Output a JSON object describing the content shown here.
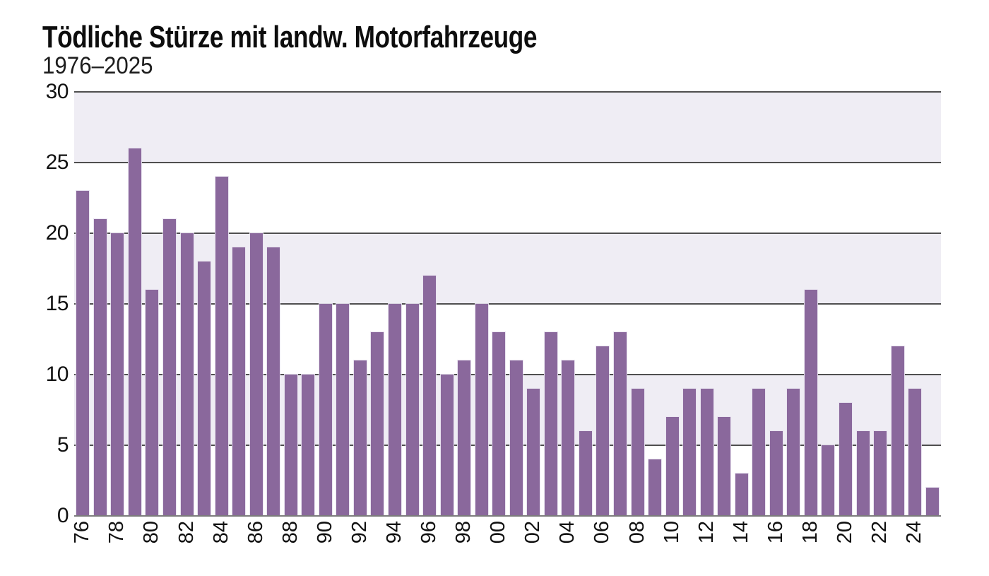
{
  "chart_data": {
    "type": "bar",
    "title": "Tödliche Stürze mit landw. Motorfahrzeuge",
    "subtitle": "1976–2025",
    "xlabel": "",
    "ylabel": "",
    "ylim": [
      0,
      30
    ],
    "yticks": [
      30,
      25,
      20,
      15,
      10,
      5,
      0
    ],
    "ytick_labels": [
      "30",
      "25",
      "20",
      "15",
      "10",
      "5",
      "0"
    ],
    "shaded_bands": [
      [
        25,
        30
      ],
      [
        15,
        20
      ],
      [
        5,
        10
      ]
    ],
    "grid": "horizontal-every-5",
    "legend": "none",
    "xtick_step": 2,
    "xtick_labels": [
      "76",
      "78",
      "80",
      "82",
      "84",
      "86",
      "88",
      "90",
      "92",
      "94",
      "96",
      "98",
      "00",
      "02",
      "04",
      "06",
      "08",
      "10",
      "12",
      "14",
      "16",
      "18",
      "20",
      "22",
      "24"
    ],
    "years": [
      1976,
      1977,
      1978,
      1979,
      1980,
      1981,
      1982,
      1983,
      1984,
      1985,
      1986,
      1987,
      1988,
      1989,
      1990,
      1991,
      1992,
      1993,
      1994,
      1995,
      1996,
      1997,
      1998,
      1999,
      2000,
      2001,
      2002,
      2003,
      2004,
      2005,
      2006,
      2007,
      2008,
      2009,
      2010,
      2011,
      2012,
      2013,
      2014,
      2015,
      2016,
      2017,
      2018,
      2019,
      2020,
      2021,
      2022,
      2023,
      2024,
      2025
    ],
    "values": [
      23,
      21,
      20,
      26,
      16,
      21,
      20,
      18,
      24,
      19,
      20,
      19,
      10,
      10,
      15,
      15,
      11,
      13,
      15,
      15,
      17,
      10,
      11,
      15,
      13,
      11,
      9,
      13,
      11,
      6,
      12,
      13,
      9,
      4,
      7,
      9,
      9,
      7,
      3,
      9,
      6,
      9,
      16,
      5,
      8,
      6,
      6,
      12,
      9,
      2
    ],
    "colors": {
      "bar": "#8a689c",
      "band": "#efedf4",
      "grid": "#4f4f4f",
      "baseline": "#7c7c7c",
      "text": "#111111"
    }
  }
}
